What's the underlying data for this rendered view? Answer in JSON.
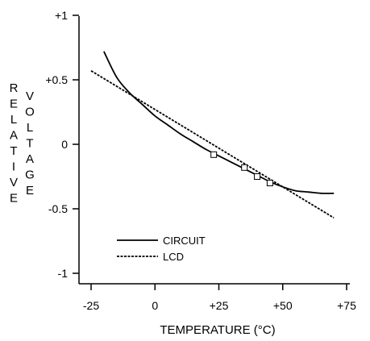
{
  "chart_data": {
    "type": "line",
    "title": "",
    "xlabel": "TEMPERATURE (°C)",
    "ylabel": "RELATIVE VOLTAGE",
    "ylabel_col1": "RELATIVE",
    "ylabel_col2": "VOLTAGE",
    "xlim": [
      -25,
      75
    ],
    "ylim": [
      -1,
      1
    ],
    "x_ticks": [
      -25,
      0,
      25,
      50,
      75
    ],
    "x_tick_labels": [
      "-25",
      "0",
      "+25",
      "+50",
      "+75"
    ],
    "y_ticks": [
      1,
      0.5,
      0,
      -0.5,
      -1
    ],
    "y_tick_labels": [
      "+1",
      "+0.5",
      "0",
      "-0.5",
      "-1"
    ],
    "grid": false,
    "legend_position": "bottom-left",
    "series": [
      {
        "name": "CIRCUIT",
        "style": "solid",
        "x": [
          -20,
          -15,
          -10,
          -5,
          0,
          5,
          10,
          15,
          20,
          25,
          30,
          35,
          40,
          45,
          50,
          55,
          60,
          65,
          70
        ],
        "y": [
          0.72,
          0.52,
          0.4,
          0.31,
          0.22,
          0.15,
          0.08,
          0.02,
          -0.04,
          -0.09,
          -0.14,
          -0.19,
          -0.24,
          -0.29,
          -0.33,
          -0.36,
          -0.37,
          -0.38,
          -0.38
        ]
      },
      {
        "name": "LCD",
        "style": "dashed",
        "x": [
          -25,
          70
        ],
        "y": [
          0.57,
          -0.57
        ]
      }
    ],
    "markers": {
      "shape": "square",
      "x": [
        23,
        35,
        40,
        45
      ],
      "y": [
        -0.08,
        -0.18,
        -0.25,
        -0.3
      ]
    }
  }
}
